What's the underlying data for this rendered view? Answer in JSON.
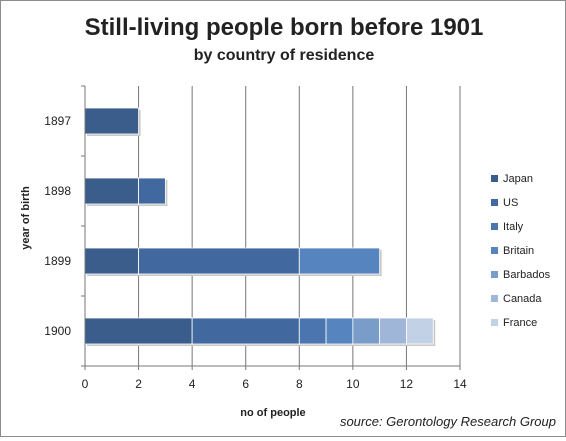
{
  "chart_data": {
    "type": "bar",
    "orientation": "horizontal",
    "stacked": true,
    "title": "Still-living people born before 1901",
    "subtitle": "by country of residence",
    "xlabel": "no of people",
    "ylabel": "year of birth",
    "source": "source: Gerontology Research Group",
    "categories": [
      "1897",
      "1898",
      "1899",
      "1900"
    ],
    "xlim": [
      0,
      14
    ],
    "xticks": [
      0,
      2,
      4,
      6,
      8,
      10,
      12,
      14
    ],
    "grid": "vertical",
    "legend_position": "right",
    "series": [
      {
        "name": "Japan",
        "color": "#3b5d8c",
        "values": [
          2,
          2,
          2,
          4
        ]
      },
      {
        "name": "US",
        "color": "#4169a0",
        "values": [
          0,
          1,
          6,
          4
        ]
      },
      {
        "name": "Italy",
        "color": "#4a75ae",
        "values": [
          0,
          0,
          0,
          1
        ]
      },
      {
        "name": "Britain",
        "color": "#5584bf",
        "values": [
          0,
          0,
          3,
          1
        ]
      },
      {
        "name": "Barbados",
        "color": "#7a9cc9",
        "values": [
          0,
          0,
          0,
          1
        ]
      },
      {
        "name": "Canada",
        "color": "#9fb6d8",
        "values": [
          0,
          0,
          0,
          1
        ]
      },
      {
        "name": "France",
        "color": "#c3d1e6",
        "values": [
          0,
          0,
          0,
          1
        ]
      }
    ]
  }
}
